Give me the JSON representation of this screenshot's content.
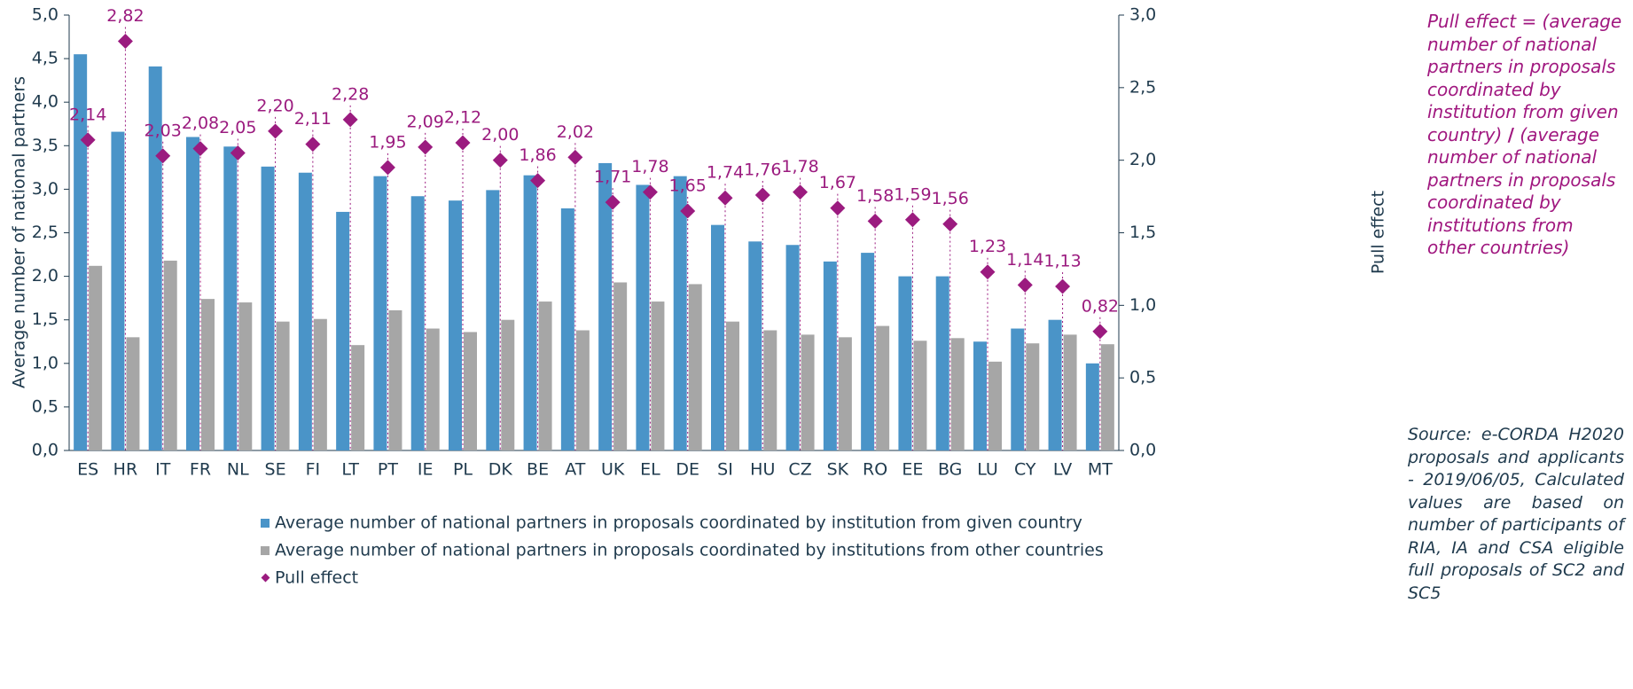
{
  "chart_data": {
    "type": "bar",
    "categories": [
      "ES",
      "HR",
      "IT",
      "FR",
      "NL",
      "SE",
      "FI",
      "LT",
      "PT",
      "IE",
      "PL",
      "DK",
      "BE",
      "AT",
      "UK",
      "EL",
      "DE",
      "SI",
      "HU",
      "CZ",
      "SK",
      "RO",
      "EE",
      "BG",
      "LU",
      "CY",
      "LV",
      "MT"
    ],
    "series": [
      {
        "name": "Average number of national partners in proposals coordinated by institution from given country",
        "color": "#4a94c8",
        "values": [
          4.55,
          3.66,
          4.41,
          3.6,
          3.49,
          3.26,
          3.19,
          2.74,
          3.15,
          2.92,
          2.87,
          2.99,
          3.16,
          2.78,
          3.3,
          3.05,
          3.15,
          2.59,
          2.4,
          2.36,
          2.17,
          2.27,
          2.0,
          2.0,
          1.25,
          1.4,
          1.5,
          1.0
        ]
      },
      {
        "name": "Average number of national partners in proposals coordinated by institutions from other countries",
        "color": "#a6a6a6",
        "values": [
          2.12,
          1.3,
          2.18,
          1.74,
          1.7,
          1.48,
          1.51,
          1.21,
          1.61,
          1.4,
          1.36,
          1.5,
          1.71,
          1.38,
          1.93,
          1.71,
          1.91,
          1.48,
          1.38,
          1.33,
          1.3,
          1.43,
          1.26,
          1.29,
          1.02,
          1.23,
          1.33,
          1.22
        ]
      },
      {
        "name": "Pull effect",
        "color": "#9b1b7f",
        "axis": "y2",
        "type": "scatter",
        "values": [
          2.14,
          2.82,
          2.03,
          2.08,
          2.05,
          2.2,
          2.11,
          2.28,
          1.95,
          2.09,
          2.12,
          2.0,
          1.86,
          2.02,
          1.71,
          1.78,
          1.65,
          1.74,
          1.76,
          1.78,
          1.67,
          1.58,
          1.59,
          1.56,
          1.23,
          1.14,
          1.13,
          0.82
        ],
        "value_labels": [
          "2,14",
          "2,82",
          "2,03",
          "2,08",
          "2,05",
          "2,20",
          "2,11",
          "2,28",
          "1,95",
          "2,09",
          "2,12",
          "2,00",
          "1,86",
          "2,02",
          "1,71",
          "1,78",
          "1,65",
          "1,74",
          "1,76",
          "1,78",
          "1,67",
          "1,58",
          "1,59",
          "1,56",
          "1,23",
          "1,14",
          "1,13",
          "0,82"
        ]
      }
    ],
    "ylabel": "Average number of national partners",
    "y2label": "Pull effect",
    "ylim": [
      0,
      5
    ],
    "yticks": [
      {
        "value": 0,
        "label": "0,0"
      },
      {
        "value": 0.5,
        "label": "0,5"
      },
      {
        "value": 1,
        "label": "1,0"
      },
      {
        "value": 1.5,
        "label": "1,5"
      },
      {
        "value": 2,
        "label": "2,0"
      },
      {
        "value": 2.5,
        "label": "2,5"
      },
      {
        "value": 3,
        "label": "3,0"
      },
      {
        "value": 3.5,
        "label": "3,5"
      },
      {
        "value": 4,
        "label": "4,0"
      },
      {
        "value": 4.5,
        "label": "4,5"
      },
      {
        "value": 5,
        "label": "5,0"
      }
    ],
    "y2lim": [
      0,
      3
    ],
    "y2ticks": [
      {
        "value": 0,
        "label": "0,0"
      },
      {
        "value": 0.5,
        "label": "0,5"
      },
      {
        "value": 1,
        "label": "1,0"
      },
      {
        "value": 1.5,
        "label": "1,5"
      },
      {
        "value": 2,
        "label": "2,0"
      },
      {
        "value": 2.5,
        "label": "2,5"
      },
      {
        "value": 3,
        "label": "3,0"
      }
    ],
    "note": [
      "Pull effect = (average number of national partners in proposals coordinated by institution from given country)",
      "/",
      "(average number of national partners in proposals coordinated by institutions from other countries)"
    ],
    "source": "Source: e-CORDA H2020 proposals and applicants - 2019/06/05, Calculated values are based on number of participants of RIA, IA and CSA eligible full proposals of SC2 and SC5"
  }
}
